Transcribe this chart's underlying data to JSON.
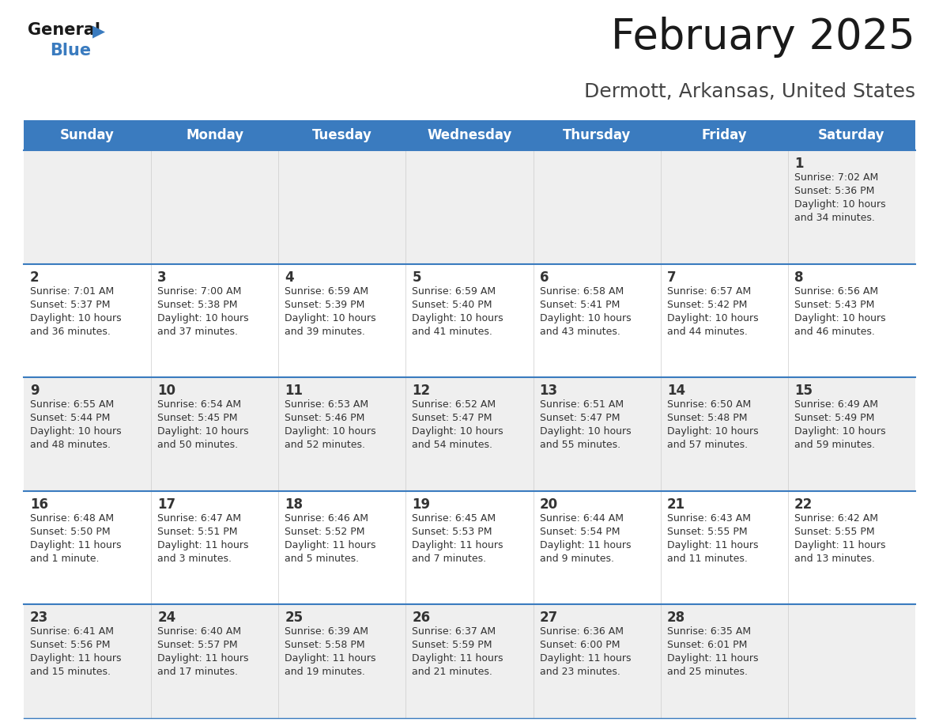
{
  "title": "February 2025",
  "subtitle": "Dermott, Arkansas, United States",
  "header_bg": "#3a7bbf",
  "header_text": "#ffffff",
  "day_names": [
    "Sunday",
    "Monday",
    "Tuesday",
    "Wednesday",
    "Thursday",
    "Friday",
    "Saturday"
  ],
  "bg_color": "#ffffff",
  "cell_bg_row0": "#efefef",
  "cell_bg_row1": "#ffffff",
  "separator_color": "#3a7bbf",
  "text_color": "#333333",
  "calendar_data": [
    [
      {
        "day": null,
        "sunrise": null,
        "sunset": null,
        "daylight": null
      },
      {
        "day": null,
        "sunrise": null,
        "sunset": null,
        "daylight": null
      },
      {
        "day": null,
        "sunrise": null,
        "sunset": null,
        "daylight": null
      },
      {
        "day": null,
        "sunrise": null,
        "sunset": null,
        "daylight": null
      },
      {
        "day": null,
        "sunrise": null,
        "sunset": null,
        "daylight": null
      },
      {
        "day": null,
        "sunrise": null,
        "sunset": null,
        "daylight": null
      },
      {
        "day": 1,
        "sunrise": "7:02 AM",
        "sunset": "5:36 PM",
        "daylight": "10 hours\nand 34 minutes."
      }
    ],
    [
      {
        "day": 2,
        "sunrise": "7:01 AM",
        "sunset": "5:37 PM",
        "daylight": "10 hours\nand 36 minutes."
      },
      {
        "day": 3,
        "sunrise": "7:00 AM",
        "sunset": "5:38 PM",
        "daylight": "10 hours\nand 37 minutes."
      },
      {
        "day": 4,
        "sunrise": "6:59 AM",
        "sunset": "5:39 PM",
        "daylight": "10 hours\nand 39 minutes."
      },
      {
        "day": 5,
        "sunrise": "6:59 AM",
        "sunset": "5:40 PM",
        "daylight": "10 hours\nand 41 minutes."
      },
      {
        "day": 6,
        "sunrise": "6:58 AM",
        "sunset": "5:41 PM",
        "daylight": "10 hours\nand 43 minutes."
      },
      {
        "day": 7,
        "sunrise": "6:57 AM",
        "sunset": "5:42 PM",
        "daylight": "10 hours\nand 44 minutes."
      },
      {
        "day": 8,
        "sunrise": "6:56 AM",
        "sunset": "5:43 PM",
        "daylight": "10 hours\nand 46 minutes."
      }
    ],
    [
      {
        "day": 9,
        "sunrise": "6:55 AM",
        "sunset": "5:44 PM",
        "daylight": "10 hours\nand 48 minutes."
      },
      {
        "day": 10,
        "sunrise": "6:54 AM",
        "sunset": "5:45 PM",
        "daylight": "10 hours\nand 50 minutes."
      },
      {
        "day": 11,
        "sunrise": "6:53 AM",
        "sunset": "5:46 PM",
        "daylight": "10 hours\nand 52 minutes."
      },
      {
        "day": 12,
        "sunrise": "6:52 AM",
        "sunset": "5:47 PM",
        "daylight": "10 hours\nand 54 minutes."
      },
      {
        "day": 13,
        "sunrise": "6:51 AM",
        "sunset": "5:47 PM",
        "daylight": "10 hours\nand 55 minutes."
      },
      {
        "day": 14,
        "sunrise": "6:50 AM",
        "sunset": "5:48 PM",
        "daylight": "10 hours\nand 57 minutes."
      },
      {
        "day": 15,
        "sunrise": "6:49 AM",
        "sunset": "5:49 PM",
        "daylight": "10 hours\nand 59 minutes."
      }
    ],
    [
      {
        "day": 16,
        "sunrise": "6:48 AM",
        "sunset": "5:50 PM",
        "daylight": "11 hours\nand 1 minute."
      },
      {
        "day": 17,
        "sunrise": "6:47 AM",
        "sunset": "5:51 PM",
        "daylight": "11 hours\nand 3 minutes."
      },
      {
        "day": 18,
        "sunrise": "6:46 AM",
        "sunset": "5:52 PM",
        "daylight": "11 hours\nand 5 minutes."
      },
      {
        "day": 19,
        "sunrise": "6:45 AM",
        "sunset": "5:53 PM",
        "daylight": "11 hours\nand 7 minutes."
      },
      {
        "day": 20,
        "sunrise": "6:44 AM",
        "sunset": "5:54 PM",
        "daylight": "11 hours\nand 9 minutes."
      },
      {
        "day": 21,
        "sunrise": "6:43 AM",
        "sunset": "5:55 PM",
        "daylight": "11 hours\nand 11 minutes."
      },
      {
        "day": 22,
        "sunrise": "6:42 AM",
        "sunset": "5:55 PM",
        "daylight": "11 hours\nand 13 minutes."
      }
    ],
    [
      {
        "day": 23,
        "sunrise": "6:41 AM",
        "sunset": "5:56 PM",
        "daylight": "11 hours\nand 15 minutes."
      },
      {
        "day": 24,
        "sunrise": "6:40 AM",
        "sunset": "5:57 PM",
        "daylight": "11 hours\nand 17 minutes."
      },
      {
        "day": 25,
        "sunrise": "6:39 AM",
        "sunset": "5:58 PM",
        "daylight": "11 hours\nand 19 minutes."
      },
      {
        "day": 26,
        "sunrise": "6:37 AM",
        "sunset": "5:59 PM",
        "daylight": "11 hours\nand 21 minutes."
      },
      {
        "day": 27,
        "sunrise": "6:36 AM",
        "sunset": "6:00 PM",
        "daylight": "11 hours\nand 23 minutes."
      },
      {
        "day": 28,
        "sunrise": "6:35 AM",
        "sunset": "6:01 PM",
        "daylight": "11 hours\nand 25 minutes."
      },
      {
        "day": null,
        "sunrise": null,
        "sunset": null,
        "daylight": null
      }
    ]
  ]
}
